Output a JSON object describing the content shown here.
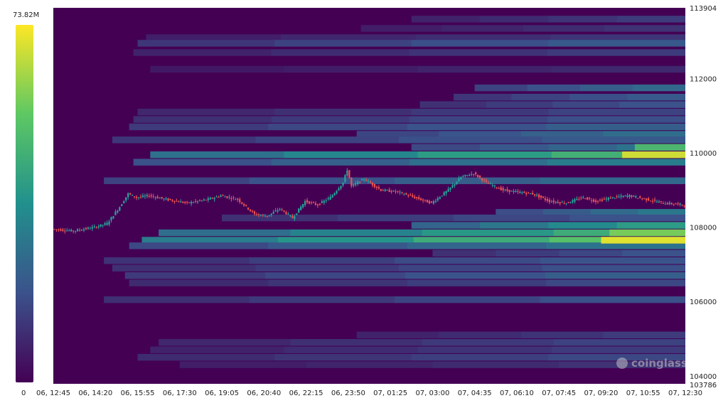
{
  "chart_data": {
    "type": "heatmap",
    "title": "",
    "watermark": "coinglass",
    "colorbar": {
      "max_label": "73.82M",
      "min_label": "0",
      "colors": [
        "#440154",
        "#3b528b",
        "#21908d",
        "#5dc863",
        "#fde725"
      ]
    },
    "x_tick_labels": [
      "06, 12:45",
      "06, 14:20",
      "06, 15:55",
      "06, 17:30",
      "06, 19:05",
      "06, 20:40",
      "06, 22:15",
      "06, 23:50",
      "07, 01:25",
      "07, 03:00",
      "07, 04:35",
      "07, 06:10",
      "07, 07:45",
      "07, 09:20",
      "07, 10:55",
      "07, 12:30"
    ],
    "y_tick_labels": [
      {
        "label": "113904",
        "value": 113904
      },
      {
        "label": "112000",
        "value": 112000
      },
      {
        "label": "110000",
        "value": 110000
      },
      {
        "label": "108000",
        "value": 108000
      },
      {
        "label": "106000",
        "value": 106000
      },
      {
        "label": "104000",
        "value": 104000
      },
      {
        "label": "103786",
        "value": 103786
      }
    ],
    "ylim": [
      103786,
      113904
    ],
    "x_range": [
      0,
      15
    ],
    "background_color": "#440154",
    "bands": [
      {
        "price": 113600,
        "start": 8.5,
        "intensity": 0.18
      },
      {
        "price": 113350,
        "start": 7.3,
        "intensity": 0.15
      },
      {
        "price": 113100,
        "start": 2.2,
        "intensity": 0.16
      },
      {
        "price": 112950,
        "start": 2.0,
        "intensity": 0.28
      },
      {
        "price": 112700,
        "start": 1.9,
        "intensity": 0.18
      },
      {
        "price": 112250,
        "start": 2.3,
        "intensity": 0.12
      },
      {
        "price": 111750,
        "start": 10.0,
        "intensity": 0.34
      },
      {
        "price": 111500,
        "start": 9.5,
        "intensity": 0.28
      },
      {
        "price": 111300,
        "start": 8.7,
        "intensity": 0.25
      },
      {
        "price": 111100,
        "start": 2.0,
        "intensity": 0.2
      },
      {
        "price": 110900,
        "start": 1.9,
        "intensity": 0.24
      },
      {
        "price": 110700,
        "start": 1.8,
        "intensity": 0.3
      },
      {
        "price": 110500,
        "start": 7.2,
        "intensity": 0.36
      },
      {
        "price": 110350,
        "start": 1.4,
        "intensity": 0.28
      },
      {
        "price": 110150,
        "start": 8.5,
        "intensity": 0.38
      },
      {
        "price": 109950,
        "start": 2.3,
        "intensity": 0.64
      },
      {
        "price": 109750,
        "start": 1.9,
        "intensity": 0.42
      },
      {
        "price": 109250,
        "start": 1.2,
        "intensity": 0.34
      },
      {
        "price": 108400,
        "start": 10.5,
        "intensity": 0.4
      },
      {
        "price": 108250,
        "start": 4.0,
        "intensity": 0.25
      },
      {
        "price": 108050,
        "start": 8.5,
        "intensity": 0.55
      },
      {
        "price": 107850,
        "start": 2.5,
        "intensity": 0.62
      },
      {
        "price": 107650,
        "start": 2.1,
        "intensity": 0.72
      },
      {
        "price": 107500,
        "start": 1.8,
        "intensity": 0.38
      },
      {
        "price": 107300,
        "start": 9.0,
        "intensity": 0.25
      },
      {
        "price": 107100,
        "start": 1.2,
        "intensity": 0.26
      },
      {
        "price": 106900,
        "start": 1.4,
        "intensity": 0.24
      },
      {
        "price": 106700,
        "start": 1.7,
        "intensity": 0.3
      },
      {
        "price": 106500,
        "start": 1.8,
        "intensity": 0.22
      },
      {
        "price": 106050,
        "start": 1.2,
        "intensity": 0.24
      },
      {
        "price": 105100,
        "start": 7.2,
        "intensity": 0.18
      },
      {
        "price": 104900,
        "start": 2.5,
        "intensity": 0.2
      },
      {
        "price": 104700,
        "start": 2.3,
        "intensity": 0.18
      },
      {
        "price": 104500,
        "start": 2.0,
        "intensity": 0.22
      },
      {
        "price": 104300,
        "start": 3.0,
        "intensity": 0.15
      }
    ],
    "hotspots": [
      {
        "price": 109950,
        "start": 13.5,
        "intensity": 0.95
      },
      {
        "price": 110150,
        "start": 13.8,
        "intensity": 0.7
      },
      {
        "price": 107650,
        "start": 13.0,
        "intensity": 0.98
      },
      {
        "price": 107850,
        "start": 13.2,
        "intensity": 0.8
      }
    ],
    "price_series": {
      "t": [
        0,
        0.5,
        1.0,
        1.3,
        1.6,
        1.8,
        2.0,
        2.3,
        2.7,
        3.2,
        3.7,
        4.0,
        4.4,
        4.8,
        5.1,
        5.4,
        5.7,
        6.0,
        6.3,
        6.6,
        6.9,
        7.0,
        7.1,
        7.4,
        7.8,
        8.2,
        8.6,
        9.0,
        9.4,
        9.7,
        10.0,
        10.3,
        10.7,
        11.0,
        11.4,
        11.8,
        12.2,
        12.6,
        12.9,
        13.3,
        13.7,
        14.1,
        14.5,
        15.0
      ],
      "price": [
        107950,
        107900,
        108000,
        108100,
        108550,
        108900,
        108800,
        108850,
        108750,
        108650,
        108750,
        108850,
        108750,
        108350,
        108300,
        108500,
        108250,
        108700,
        108600,
        108800,
        109200,
        109550,
        109100,
        109300,
        109000,
        108950,
        108800,
        108650,
        109000,
        109350,
        109450,
        109200,
        109000,
        108950,
        108900,
        108700,
        108650,
        108800,
        108700,
        108800,
        108850,
        108750,
        108650,
        108600
      ]
    }
  }
}
